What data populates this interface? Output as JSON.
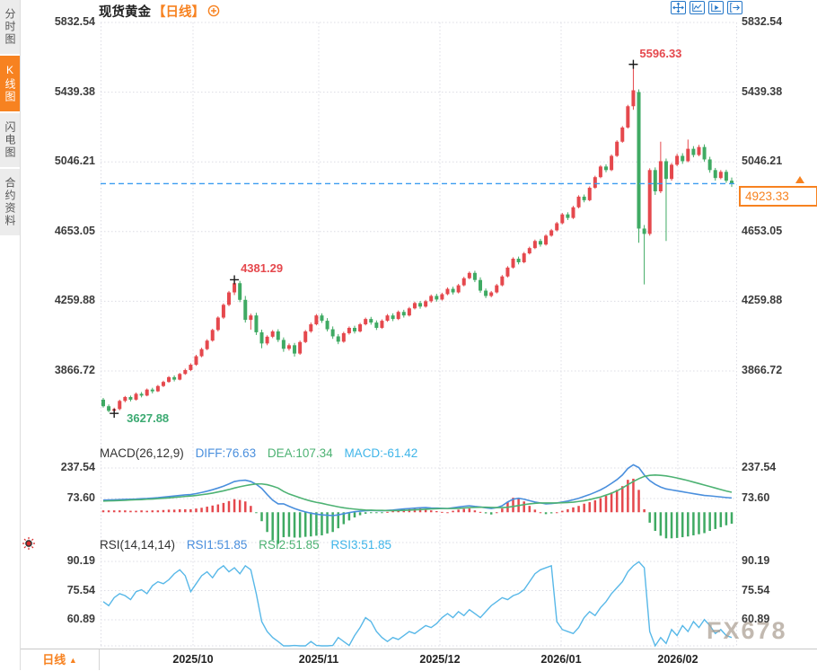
{
  "sidebar": {
    "items": [
      {
        "label": "分时图",
        "active": false
      },
      {
        "label": "K线图",
        "active": true
      },
      {
        "label": "闪电图",
        "active": false
      },
      {
        "label": "合约资料",
        "active": false
      }
    ]
  },
  "header": {
    "title": "现货黄金",
    "period_tag": "【日线】",
    "toolbar_icons": [
      "crosshair-icon",
      "axis-zigzag-icon",
      "axis-play-icon",
      "export-icon"
    ]
  },
  "bottom": {
    "period": "日线",
    "arrow": "▲"
  },
  "watermark": "FX678",
  "colors": {
    "up": "#e5484d",
    "down": "#3faa63",
    "accent_orange": "#f78220",
    "grid": "#dcdce4",
    "dash_line": "#3d9df0",
    "diff_line": "#4a8fdd",
    "dea_line": "#4db273",
    "rsi_line": "#58b8e8",
    "toolbar_blue": "#2577c8"
  },
  "chart_data": {
    "type": "candlestick",
    "symbol": "现货黄金",
    "interval": "日线",
    "x_axis": {
      "labels": [
        "2025/10",
        "2025/11",
        "2025/12",
        "2026/01",
        "2026/02"
      ]
    },
    "y_axis": {
      "ticks": [
        5832.54,
        5439.38,
        5046.21,
        4653.05,
        4259.88,
        3866.72
      ]
    },
    "last_price": {
      "value": 4923.33,
      "label": "4923.33"
    },
    "annotations": [
      {
        "label": "5596.33",
        "index": 97,
        "at": "high",
        "color": "#e5484d"
      },
      {
        "label": "4381.29",
        "index": 24,
        "at": "high",
        "color": "#e5484d"
      },
      {
        "label": "3627.88",
        "index": 2,
        "at": "low",
        "color": "#3caa72"
      }
    ],
    "candles": [
      [
        3705,
        3715,
        3660,
        3668
      ],
      [
        3668,
        3678,
        3634,
        3642
      ],
      [
        3642,
        3660,
        3627.88,
        3652
      ],
      [
        3652,
        3705,
        3645,
        3698
      ],
      [
        3698,
        3726,
        3690,
        3720
      ],
      [
        3720,
        3728,
        3695,
        3705
      ],
      [
        3705,
        3745,
        3700,
        3738
      ],
      [
        3738,
        3748,
        3718,
        3728
      ],
      [
        3728,
        3768,
        3724,
        3762
      ],
      [
        3762,
        3772,
        3740,
        3752
      ],
      [
        3752,
        3788,
        3748,
        3782
      ],
      [
        3782,
        3812,
        3776,
        3805
      ],
      [
        3805,
        3838,
        3800,
        3832
      ],
      [
        3832,
        3842,
        3808,
        3818
      ],
      [
        3818,
        3856,
        3814,
        3850
      ],
      [
        3850,
        3880,
        3845,
        3872
      ],
      [
        3872,
        3910,
        3866,
        3902
      ],
      [
        3902,
        3958,
        3896,
        3950
      ],
      [
        3950,
        3998,
        3944,
        3990
      ],
      [
        3990,
        4046,
        3984,
        4038
      ],
      [
        4038,
        4105,
        4032,
        4098
      ],
      [
        4098,
        4175,
        4090,
        4168
      ],
      [
        4168,
        4248,
        4160,
        4240
      ],
      [
        4240,
        4318,
        4232,
        4310
      ],
      [
        4310,
        4381.29,
        4295,
        4362
      ],
      [
        4362,
        4375,
        4255,
        4268
      ],
      [
        4268,
        4290,
        4140,
        4155
      ],
      [
        4155,
        4190,
        4100,
        4180
      ],
      [
        4180,
        4195,
        4070,
        4085
      ],
      [
        4085,
        4100,
        3995,
        4022
      ],
      [
        4022,
        4068,
        4012,
        4060
      ],
      [
        4060,
        4098,
        4052,
        4090
      ],
      [
        4090,
        4102,
        4030,
        4042
      ],
      [
        4042,
        4056,
        3975,
        3992
      ],
      [
        3992,
        4022,
        3982,
        4012
      ],
      [
        4012,
        4025,
        3948,
        3965
      ],
      [
        3965,
        4038,
        3958,
        4030
      ],
      [
        4030,
        4098,
        4024,
        4090
      ],
      [
        4090,
        4140,
        4082,
        4130
      ],
      [
        4130,
        4188,
        4124,
        4180
      ],
      [
        4180,
        4192,
        4138,
        4150
      ],
      [
        4150,
        4165,
        4090,
        4102
      ],
      [
        4102,
        4118,
        4048,
        4062
      ],
      [
        4062,
        4075,
        4018,
        4032
      ],
      [
        4032,
        4088,
        4026,
        4080
      ],
      [
        4080,
        4118,
        4072,
        4110
      ],
      [
        4110,
        4122,
        4078,
        4090
      ],
      [
        4090,
        4138,
        4084,
        4130
      ],
      [
        4130,
        4168,
        4124,
        4160
      ],
      [
        4160,
        4172,
        4128,
        4140
      ],
      [
        4140,
        4152,
        4098,
        4110
      ],
      [
        4110,
        4158,
        4104,
        4150
      ],
      [
        4150,
        4188,
        4144,
        4180
      ],
      [
        4180,
        4192,
        4148,
        4160
      ],
      [
        4160,
        4208,
        4154,
        4200
      ],
      [
        4200,
        4212,
        4168,
        4180
      ],
      [
        4180,
        4228,
        4174,
        4220
      ],
      [
        4220,
        4258,
        4214,
        4250
      ],
      [
        4250,
        4262,
        4218,
        4230
      ],
      [
        4230,
        4268,
        4224,
        4260
      ],
      [
        4260,
        4298,
        4252,
        4290
      ],
      [
        4290,
        4302,
        4258,
        4270
      ],
      [
        4270,
        4308,
        4264,
        4300
      ],
      [
        4300,
        4338,
        4294,
        4330
      ],
      [
        4330,
        4342,
        4298,
        4310
      ],
      [
        4310,
        4358,
        4304,
        4350
      ],
      [
        4350,
        4398,
        4344,
        4390
      ],
      [
        4390,
        4428,
        4384,
        4420
      ],
      [
        4420,
        4432,
        4368,
        4380
      ],
      [
        4380,
        4395,
        4308,
        4320
      ],
      [
        4320,
        4332,
        4278,
        4290
      ],
      [
        4290,
        4318,
        4282,
        4310
      ],
      [
        4310,
        4358,
        4304,
        4350
      ],
      [
        4350,
        4408,
        4344,
        4400
      ],
      [
        4400,
        4458,
        4394,
        4450
      ],
      [
        4450,
        4508,
        4444,
        4500
      ],
      [
        4500,
        4512,
        4468,
        4480
      ],
      [
        4480,
        4538,
        4474,
        4530
      ],
      [
        4530,
        4568,
        4524,
        4560
      ],
      [
        4560,
        4608,
        4554,
        4600
      ],
      [
        4600,
        4612,
        4568,
        4580
      ],
      [
        4580,
        4638,
        4574,
        4630
      ],
      [
        4630,
        4668,
        4624,
        4660
      ],
      [
        4660,
        4708,
        4654,
        4700
      ],
      [
        4700,
        4758,
        4694,
        4750
      ],
      [
        4750,
        4762,
        4718,
        4730
      ],
      [
        4730,
        4798,
        4724,
        4790
      ],
      [
        4790,
        4858,
        4784,
        4850
      ],
      [
        4850,
        4862,
        4818,
        4830
      ],
      [
        4830,
        4908,
        4824,
        4900
      ],
      [
        4900,
        4968,
        4894,
        4960
      ],
      [
        4960,
        5028,
        4954,
        5020
      ],
      [
        5020,
        5032,
        4988,
        5000
      ],
      [
        5000,
        5088,
        4994,
        5080
      ],
      [
        5080,
        5168,
        5074,
        5160
      ],
      [
        5160,
        5248,
        5154,
        5240
      ],
      [
        5240,
        5368,
        5234,
        5360
      ],
      [
        5360,
        5596.33,
        5340,
        5450
      ],
      [
        5440,
        5455,
        4590,
        4670
      ],
      [
        4670,
        4690,
        4355,
        4640
      ],
      [
        4640,
        5010,
        4630,
        5000
      ],
      [
        5000,
        5015,
        4860,
        4880
      ],
      [
        4880,
        5160,
        4870,
        5050
      ],
      [
        5050,
        5065,
        4600,
        4950
      ],
      [
        4950,
        5040,
        4940,
        5030
      ],
      [
        5030,
        5092,
        5022,
        5080
      ],
      [
        5080,
        5095,
        5035,
        5050
      ],
      [
        5050,
        5172,
        5044,
        5120
      ],
      [
        5120,
        5135,
        5072,
        5085
      ],
      [
        5085,
        5142,
        5078,
        5130
      ],
      [
        5130,
        5145,
        5048,
        5060
      ],
      [
        5060,
        5075,
        4985,
        5000
      ],
      [
        5000,
        5012,
        4940,
        4955
      ],
      [
        4955,
        5000,
        4948,
        4990
      ],
      [
        4990,
        5002,
        4928,
        4940
      ],
      [
        4940,
        4958,
        4905,
        4923.33
      ]
    ]
  },
  "macd": {
    "name": "MACD(26,12,9)",
    "diff_label": "DIFF:76.63",
    "dea_label": "DEA:107.34",
    "macd_label": "MACD:-61.42",
    "ticks": [
      237.54,
      73.6
    ],
    "diff": [
      65,
      66,
      67,
      68,
      69,
      70,
      71,
      73,
      74,
      76,
      78,
      81,
      84,
      87,
      90,
      93,
      95,
      100,
      106,
      113,
      121,
      130,
      140,
      152,
      165,
      170,
      172,
      165,
      150,
      128,
      95,
      65,
      45,
      45,
      32,
      20,
      10,
      2,
      -5,
      -10,
      -14,
      -16,
      -18,
      -14,
      -8,
      -2,
      3,
      6,
      8,
      10,
      9,
      8,
      10,
      12,
      15,
      18,
      20,
      22,
      24,
      25,
      23,
      22,
      21,
      20,
      24,
      28,
      32,
      35,
      31,
      28,
      24,
      20,
      25,
      35,
      55,
      70,
      75,
      70,
      62,
      55,
      50,
      45,
      47,
      50,
      55,
      60,
      67,
      75,
      85,
      95,
      107,
      120,
      136,
      155,
      175,
      200,
      235,
      255,
      240,
      200,
      170,
      150,
      135,
      125,
      120,
      115,
      110,
      105,
      100,
      95,
      90,
      88,
      85,
      82,
      79,
      76.63
    ],
    "dea": [
      60,
      61,
      62,
      63,
      64,
      66,
      67,
      68,
      70,
      71,
      73,
      75,
      77,
      80,
      82,
      85,
      87,
      90,
      94,
      98,
      103,
      109,
      115,
      122,
      130,
      137,
      143,
      148,
      152,
      152,
      148,
      140,
      130,
      112,
      98,
      88,
      78,
      68,
      60,
      53,
      48,
      41,
      35,
      29,
      24,
      20,
      17,
      14,
      12,
      11,
      10,
      10,
      9,
      9,
      9,
      10,
      11,
      13,
      14,
      16,
      18,
      19,
      20,
      20,
      20,
      21,
      23,
      25,
      26,
      27,
      27,
      26,
      25,
      25,
      27,
      31,
      36,
      41,
      45,
      48,
      50,
      50,
      50,
      50,
      51,
      52,
      54,
      58,
      62,
      68,
      75,
      82,
      92,
      102,
      115,
      130,
      148,
      165,
      180,
      192,
      198,
      200,
      198,
      195,
      190,
      184,
      177,
      170,
      162,
      154,
      146,
      138,
      130,
      122,
      114,
      107.34
    ]
  },
  "rsi": {
    "name": "RSI(14,14,14)",
    "rsi1_label": "RSI1:51.85",
    "rsi2_label": "RSI2:51.85",
    "rsi3_label": "RSI3:51.85",
    "ticks": [
      90.19,
      75.54,
      60.89
    ],
    "values": [
      70,
      68,
      72,
      74,
      73,
      71,
      75,
      76,
      74,
      78,
      80,
      79,
      81,
      84,
      86,
      83,
      75,
      79,
      83,
      85,
      82,
      86,
      88,
      85,
      87,
      84,
      88,
      86,
      74,
      60,
      55,
      52,
      50,
      47,
      46,
      48,
      45,
      47,
      50,
      48,
      46,
      45,
      48,
      52,
      50,
      48,
      53,
      57,
      62,
      60,
      55,
      52,
      50,
      52,
      51,
      53,
      55,
      54,
      56,
      58,
      57,
      59,
      62,
      64,
      62,
      65,
      63,
      66,
      64,
      62,
      65,
      68,
      70,
      72,
      71,
      73,
      74,
      76,
      80,
      84,
      86,
      87,
      88,
      60,
      56,
      55,
      54,
      57,
      62,
      65,
      63,
      67,
      70,
      74,
      77,
      80,
      85,
      88,
      90,
      87,
      55,
      46,
      52,
      49,
      56,
      53,
      58,
      55,
      60,
      57,
      61,
      58,
      54,
      56,
      53,
      52
    ]
  }
}
